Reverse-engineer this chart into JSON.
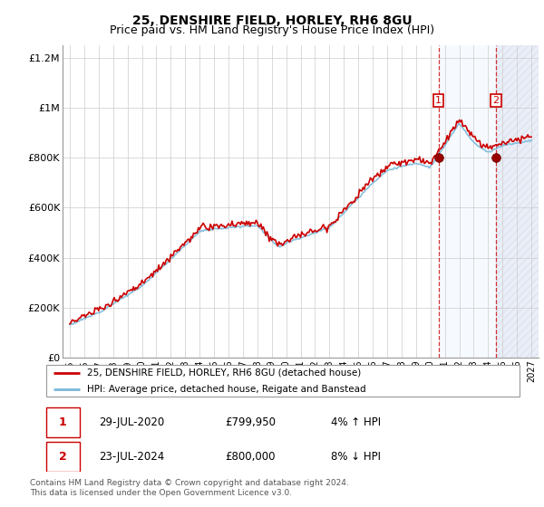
{
  "title": "25, DENSHIRE FIELD, HORLEY, RH6 8GU",
  "subtitle": "Price paid vs. HM Land Registry's House Price Index (HPI)",
  "legend_line1": "25, DENSHIRE FIELD, HORLEY, RH6 8GU (detached house)",
  "legend_line2": "HPI: Average price, detached house, Reigate and Banstead",
  "footnote": "Contains HM Land Registry data © Crown copyright and database right 2024.\nThis data is licensed under the Open Government Licence v3.0.",
  "transaction1_date": "29-JUL-2020",
  "transaction1_price": "£799,950",
  "transaction1_hpi": "4% ↑ HPI",
  "transaction2_date": "23-JUL-2024",
  "transaction2_price": "£800,000",
  "transaction2_hpi": "8% ↓ HPI",
  "sale1_x": 2020.57,
  "sale1_y": 799950,
  "sale2_x": 2024.55,
  "sale2_y": 800000,
  "hpi_color": "#7ab8d9",
  "price_color": "#cc0000",
  "shaded_color": "#ddeeff",
  "ylim_min": 0,
  "ylim_max": 1250000,
  "xlim_min": 1994.5,
  "xlim_max": 2027.5,
  "yticks": [
    0,
    200000,
    400000,
    600000,
    800000,
    1000000,
    1200000
  ],
  "ytick_labels": [
    "£0",
    "£200K",
    "£400K",
    "£600K",
    "£800K",
    "£1M",
    "£1.2M"
  ],
  "xticks": [
    1995,
    1996,
    1997,
    1998,
    1999,
    2000,
    2001,
    2002,
    2003,
    2004,
    2005,
    2006,
    2007,
    2008,
    2009,
    2010,
    2011,
    2012,
    2013,
    2014,
    2015,
    2016,
    2017,
    2018,
    2019,
    2020,
    2021,
    2022,
    2023,
    2024,
    2025,
    2026,
    2027
  ],
  "title_fontsize": 10,
  "subtitle_fontsize": 9
}
